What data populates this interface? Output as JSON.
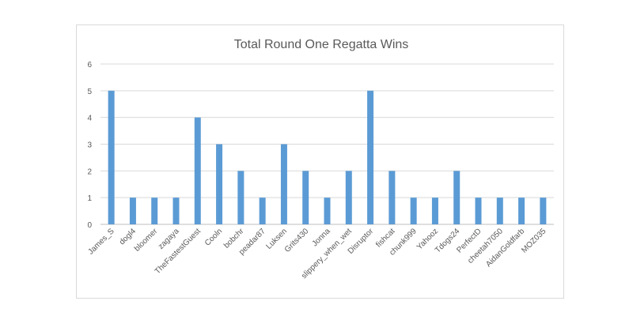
{
  "chart_data": {
    "type": "bar",
    "title": "Total Round One Regatta Wins",
    "xlabel": "",
    "ylabel": "",
    "ylim": [
      0,
      6
    ],
    "yticks": [
      "0",
      "1",
      "2",
      "3",
      "4",
      "5",
      "6"
    ],
    "grid": true,
    "legend": "none",
    "bar_color": "#5b9bd5",
    "categories": [
      "James_S",
      "dogl4",
      "bloomer",
      "zagaya",
      "TheFastestGuest",
      "Cooln",
      "bobchr",
      "peadar87",
      "Luksen",
      "Grits430",
      "Jonna",
      "slippery_when_wet",
      "Disruptor",
      "fishcat",
      "chunk999",
      "Yahooz",
      "Tdogs24",
      "PerfectD",
      "cheetah7050",
      "AidanGoldfarb",
      "MOZ035"
    ],
    "values": [
      5,
      1,
      1,
      1,
      4,
      3,
      2,
      1,
      3,
      2,
      1,
      2,
      5,
      2,
      1,
      1,
      2,
      1,
      1,
      1,
      1
    ]
  }
}
